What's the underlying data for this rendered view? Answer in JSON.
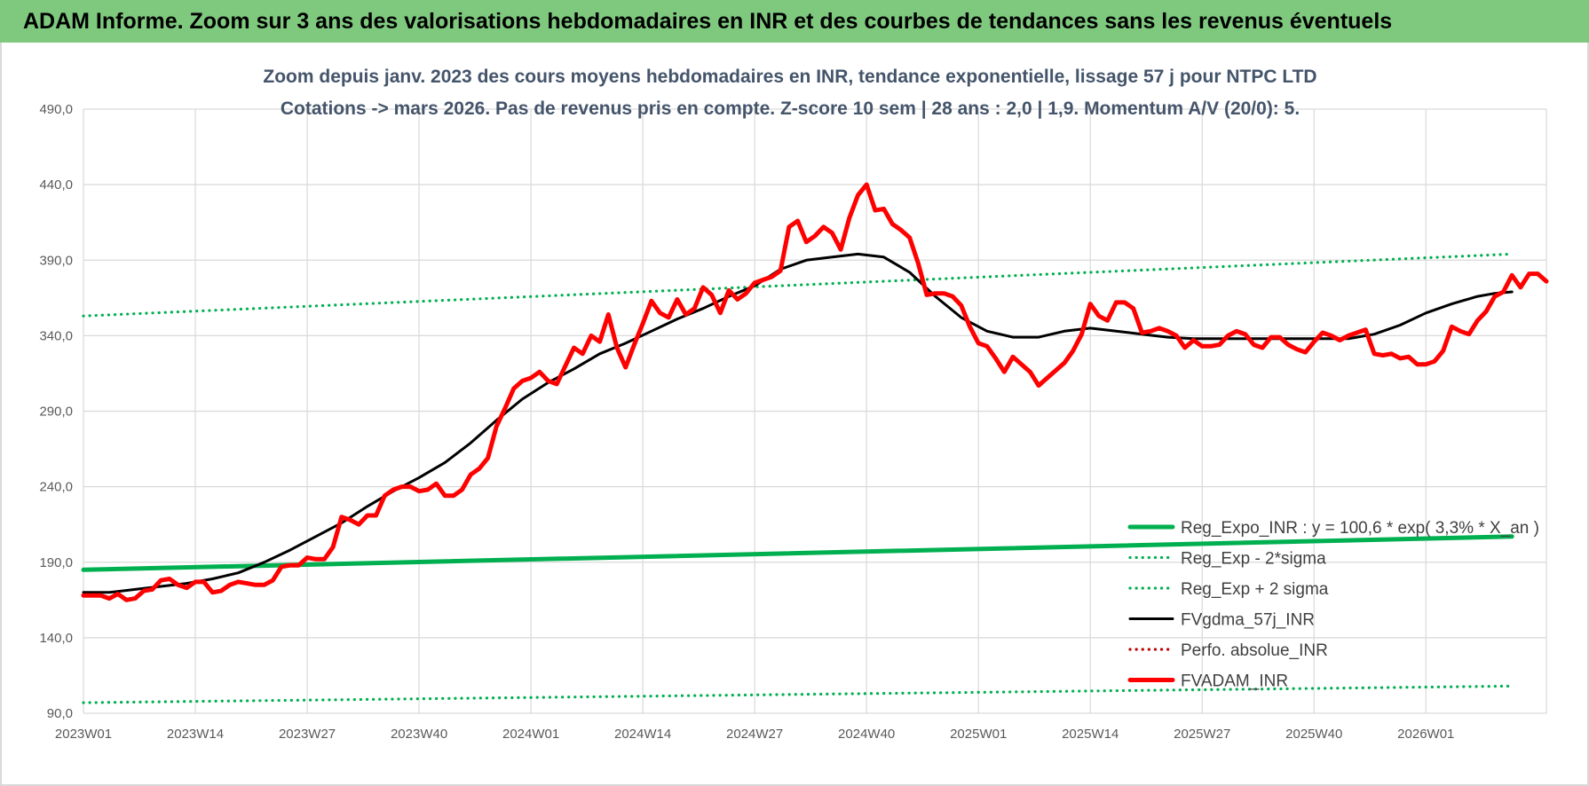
{
  "banner": {
    "title": "ADAM Informe. Zoom sur 3 ans des valorisations hebdomadaires en INR et des courbes de tendances sans les revenus éventuels"
  },
  "colors": {
    "banner": "#7fc97f",
    "regression": "#00b050",
    "average": "#000000",
    "price": "#ff0000",
    "grid": "#d9d9d9",
    "title_text": "#44546a"
  },
  "chart_data": {
    "type": "line",
    "title_line1": "Zoom depuis janv. 2023 des cours moyens hebdomadaires en INR, tendance exponentielle, lissage 57 j pour NTPC LTD",
    "title_line2": "Cotations -> mars 2026. Pas de revenus pris en compte. Z-score 10 sem | 28 ans : 2,0 | 1,9. Momentum A/V (20/0): 5.",
    "xlabel": "",
    "ylabel": "",
    "ylim": [
      90,
      490
    ],
    "y_ticks": [
      "90,0",
      "140,0",
      "190,0",
      "240,0",
      "290,0",
      "340,0",
      "390,0",
      "440,0",
      "490,0"
    ],
    "x_ticks": [
      "2023W01",
      "2023W14",
      "2023W27",
      "2023W40",
      "2024W01",
      "2024W14",
      "2024W27",
      "2024W40",
      "2025W01",
      "2025W14",
      "2025W27",
      "2025W40",
      "2026W01"
    ],
    "x_range_weeks": [
      0,
      166
    ],
    "grid": true,
    "legend_position": "bottom-right",
    "series": [
      {
        "name": "Reg_Expo_INR : y = 100,6 * exp( 3,3% *  X_an )",
        "style": "solid-thick",
        "color": "#00b050",
        "points": [
          [
            0,
            185
          ],
          [
            166,
            207
          ]
        ]
      },
      {
        "name": "Reg_Exp - 2*sigma",
        "style": "dotted",
        "color": "#00b050",
        "points": [
          [
            0,
            97
          ],
          [
            166,
            108
          ]
        ]
      },
      {
        "name": "Reg_Exp + 2 sigma",
        "style": "dotted",
        "color": "#00b050",
        "points": [
          [
            0,
            353
          ],
          [
            166,
            394
          ]
        ]
      },
      {
        "name": "FVgdma_57j_INR",
        "style": "solid",
        "color": "#000000",
        "points": [
          [
            0,
            170
          ],
          [
            3,
            170
          ],
          [
            6,
            172
          ],
          [
            9,
            174
          ],
          [
            12,
            176
          ],
          [
            15,
            179
          ],
          [
            18,
            183
          ],
          [
            21,
            190
          ],
          [
            24,
            198
          ],
          [
            27,
            207
          ],
          [
            30,
            216
          ],
          [
            33,
            227
          ],
          [
            36,
            237
          ],
          [
            39,
            246
          ],
          [
            42,
            256
          ],
          [
            45,
            269
          ],
          [
            48,
            284
          ],
          [
            51,
            298
          ],
          [
            54,
            309
          ],
          [
            57,
            318
          ],
          [
            60,
            328
          ],
          [
            63,
            335
          ],
          [
            66,
            343
          ],
          [
            69,
            351
          ],
          [
            72,
            358
          ],
          [
            75,
            366
          ],
          [
            78,
            373
          ],
          [
            81,
            384
          ],
          [
            84,
            390
          ],
          [
            87,
            392
          ],
          [
            90,
            394
          ],
          [
            93,
            392
          ],
          [
            96,
            382
          ],
          [
            99,
            366
          ],
          [
            102,
            352
          ],
          [
            105,
            343
          ],
          [
            108,
            339
          ],
          [
            111,
            339
          ],
          [
            114,
            343
          ],
          [
            117,
            345
          ],
          [
            120,
            343
          ],
          [
            123,
            341
          ],
          [
            126,
            339
          ],
          [
            129,
            338
          ],
          [
            132,
            338
          ],
          [
            135,
            338
          ],
          [
            138,
            338
          ],
          [
            141,
            338
          ],
          [
            144,
            338
          ],
          [
            147,
            338
          ],
          [
            150,
            341
          ],
          [
            153,
            347
          ],
          [
            156,
            355
          ],
          [
            159,
            361
          ],
          [
            162,
            366
          ],
          [
            164,
            368
          ],
          [
            166,
            369
          ]
        ]
      },
      {
        "name": "Perfo. absolue_INR",
        "style": "dotted",
        "color": "#c00000",
        "points": []
      },
      {
        "name": "FVADAM_INR",
        "style": "solid-thick",
        "color": "#ff0000",
        "points": [
          [
            0,
            168
          ],
          [
            1,
            168
          ],
          [
            2,
            168
          ],
          [
            3,
            166
          ],
          [
            4,
            169
          ],
          [
            5,
            165
          ],
          [
            6,
            166
          ],
          [
            7,
            171
          ],
          [
            8,
            172
          ],
          [
            9,
            178
          ],
          [
            10,
            179
          ],
          [
            11,
            175
          ],
          [
            12,
            173
          ],
          [
            13,
            177
          ],
          [
            14,
            177
          ],
          [
            15,
            170
          ],
          [
            16,
            171
          ],
          [
            17,
            175
          ],
          [
            18,
            177
          ],
          [
            19,
            176
          ],
          [
            20,
            175
          ],
          [
            21,
            175
          ],
          [
            22,
            178
          ],
          [
            23,
            187
          ],
          [
            24,
            188
          ],
          [
            25,
            188
          ],
          [
            26,
            193
          ],
          [
            27,
            192
          ],
          [
            28,
            192
          ],
          [
            29,
            200
          ],
          [
            30,
            220
          ],
          [
            31,
            218
          ],
          [
            32,
            215
          ],
          [
            33,
            221
          ],
          [
            34,
            221
          ],
          [
            35,
            234
          ],
          [
            36,
            238
          ],
          [
            37,
            240
          ],
          [
            38,
            240
          ],
          [
            39,
            237
          ],
          [
            40,
            238
          ],
          [
            41,
            242
          ],
          [
            42,
            234
          ],
          [
            43,
            234
          ],
          [
            44,
            238
          ],
          [
            45,
            248
          ],
          [
            46,
            252
          ],
          [
            47,
            259
          ],
          [
            48,
            280
          ],
          [
            49,
            292
          ],
          [
            50,
            305
          ],
          [
            51,
            310
          ],
          [
            52,
            312
          ],
          [
            53,
            316
          ],
          [
            54,
            310
          ],
          [
            55,
            308
          ],
          [
            56,
            320
          ],
          [
            57,
            332
          ],
          [
            58,
            328
          ],
          [
            59,
            340
          ],
          [
            60,
            336
          ],
          [
            61,
            354
          ],
          [
            62,
            332
          ],
          [
            63,
            319
          ],
          [
            64,
            334
          ],
          [
            65,
            348
          ],
          [
            66,
            363
          ],
          [
            67,
            355
          ],
          [
            68,
            352
          ],
          [
            69,
            364
          ],
          [
            70,
            354
          ],
          [
            71,
            358
          ],
          [
            72,
            372
          ],
          [
            73,
            367
          ],
          [
            74,
            355
          ],
          [
            75,
            370
          ],
          [
            76,
            364
          ],
          [
            77,
            368
          ],
          [
            78,
            375
          ],
          [
            79,
            377
          ],
          [
            80,
            379
          ],
          [
            81,
            383
          ],
          [
            82,
            412
          ],
          [
            83,
            416
          ],
          [
            84,
            402
          ],
          [
            85,
            406
          ],
          [
            86,
            412
          ],
          [
            87,
            408
          ],
          [
            88,
            397
          ],
          [
            89,
            418
          ],
          [
            90,
            433
          ],
          [
            91,
            440
          ],
          [
            92,
            423
          ],
          [
            93,
            424
          ],
          [
            94,
            414
          ],
          [
            95,
            410
          ],
          [
            96,
            405
          ],
          [
            97,
            388
          ],
          [
            98,
            367
          ],
          [
            99,
            368
          ],
          [
            100,
            368
          ],
          [
            101,
            366
          ],
          [
            102,
            360
          ],
          [
            103,
            346
          ],
          [
            104,
            335
          ],
          [
            105,
            333
          ],
          [
            106,
            325
          ],
          [
            107,
            316
          ],
          [
            108,
            326
          ],
          [
            109,
            321
          ],
          [
            110,
            316
          ],
          [
            111,
            307
          ],
          [
            112,
            312
          ],
          [
            113,
            317
          ],
          [
            114,
            322
          ],
          [
            115,
            330
          ],
          [
            116,
            341
          ],
          [
            117,
            361
          ],
          [
            118,
            353
          ],
          [
            119,
            350
          ],
          [
            120,
            362
          ],
          [
            121,
            362
          ],
          [
            122,
            358
          ],
          [
            123,
            342
          ],
          [
            124,
            343
          ],
          [
            125,
            345
          ],
          [
            126,
            343
          ],
          [
            127,
            340
          ],
          [
            128,
            332
          ],
          [
            129,
            337
          ],
          [
            130,
            333
          ],
          [
            131,
            333
          ],
          [
            132,
            334
          ],
          [
            133,
            340
          ],
          [
            134,
            343
          ],
          [
            135,
            341
          ],
          [
            136,
            334
          ],
          [
            137,
            332
          ],
          [
            138,
            339
          ],
          [
            139,
            339
          ],
          [
            140,
            334
          ],
          [
            141,
            331
          ],
          [
            142,
            329
          ],
          [
            143,
            336
          ],
          [
            144,
            342
          ],
          [
            145,
            340
          ],
          [
            146,
            337
          ],
          [
            147,
            340
          ],
          [
            148,
            342
          ],
          [
            149,
            344
          ],
          [
            150,
            328
          ],
          [
            151,
            327
          ],
          [
            152,
            328
          ],
          [
            153,
            325
          ],
          [
            154,
            326
          ],
          [
            155,
            321
          ],
          [
            156,
            321
          ],
          [
            157,
            323
          ],
          [
            158,
            330
          ],
          [
            159,
            346
          ],
          [
            160,
            343
          ],
          [
            161,
            341
          ],
          [
            162,
            350
          ],
          [
            163,
            356
          ],
          [
            164,
            366
          ],
          [
            165,
            369
          ],
          [
            166,
            380
          ],
          [
            167,
            372
          ],
          [
            168,
            381
          ],
          [
            169,
            381
          ],
          [
            170,
            376
          ]
        ]
      }
    ]
  }
}
